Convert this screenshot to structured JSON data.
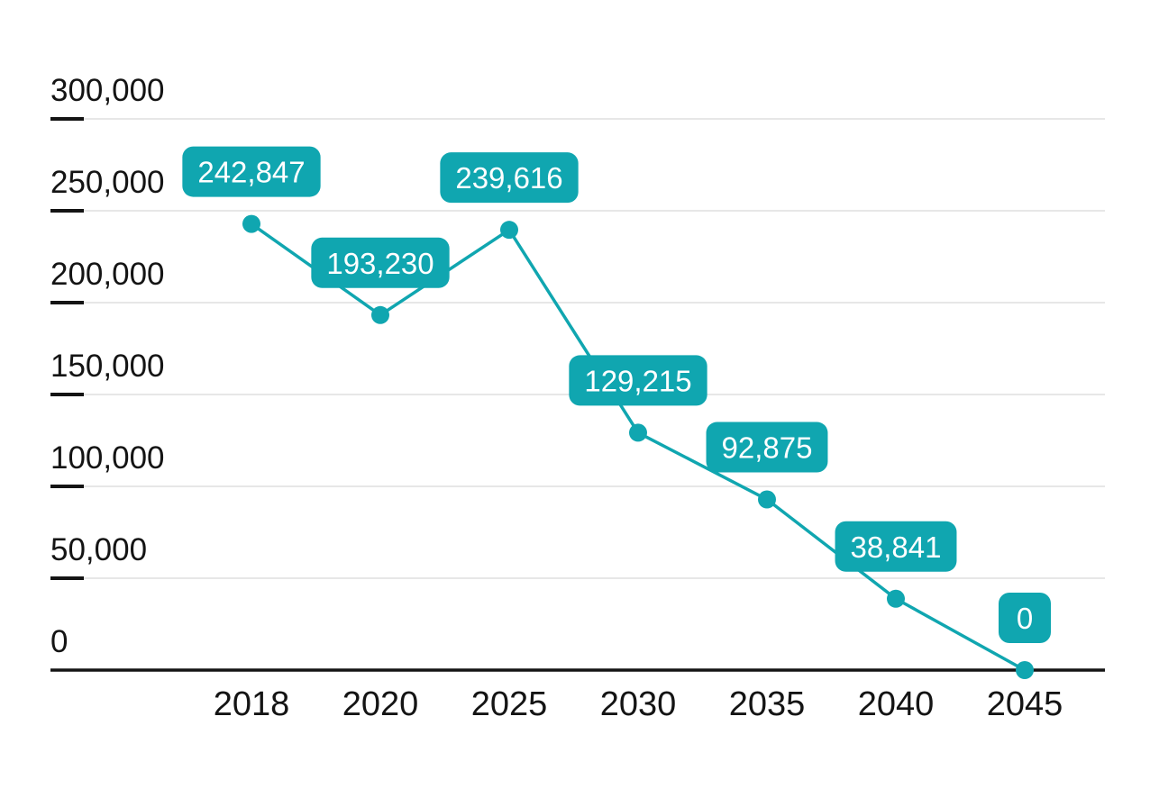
{
  "chart_data": {
    "type": "line",
    "title": "",
    "xlabel": "",
    "ylabel": "",
    "categories": [
      "2018",
      "2020",
      "2025",
      "2030",
      "2035",
      "2040",
      "2045"
    ],
    "series": [
      {
        "name": "value",
        "values": [
          242847,
          193230,
          239616,
          129215,
          92875,
          38841,
          0
        ],
        "value_labels": [
          "242,847",
          "193,230",
          "239,616",
          "129,215",
          "92,875",
          "38,841",
          "0"
        ]
      }
    ],
    "ylim": [
      0,
      300000
    ],
    "y_ticks": [
      {
        "value": 300000,
        "label": "300,000"
      },
      {
        "value": 250000,
        "label": "250,000"
      },
      {
        "value": 200000,
        "label": "200,000"
      },
      {
        "value": 150000,
        "label": "150,000"
      },
      {
        "value": 100000,
        "label": "100,000"
      },
      {
        "value": 50000,
        "label": "50,000"
      },
      {
        "value": 0,
        "label": "0"
      }
    ],
    "grid": "horizontal",
    "legend": "none",
    "marker": "circle",
    "data_labels": "shown-in-rounded-boxes",
    "colors": {
      "series": "#10a6b0",
      "label_background": "#10a6b0",
      "label_text": "#ffffff",
      "gridline": "#e7e7e7",
      "axis": "#141414",
      "tick_text": "#141414",
      "background": "#ffffff"
    }
  }
}
